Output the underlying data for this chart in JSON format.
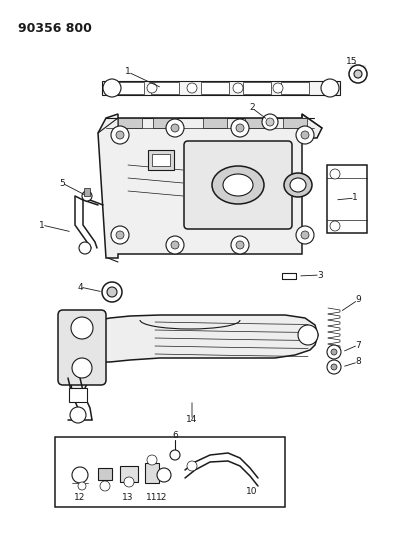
{
  "title": "90356 800",
  "bg": "#ffffff",
  "lc": "#1a1a1a",
  "figsize": [
    3.99,
    5.33
  ],
  "dpi": 100
}
